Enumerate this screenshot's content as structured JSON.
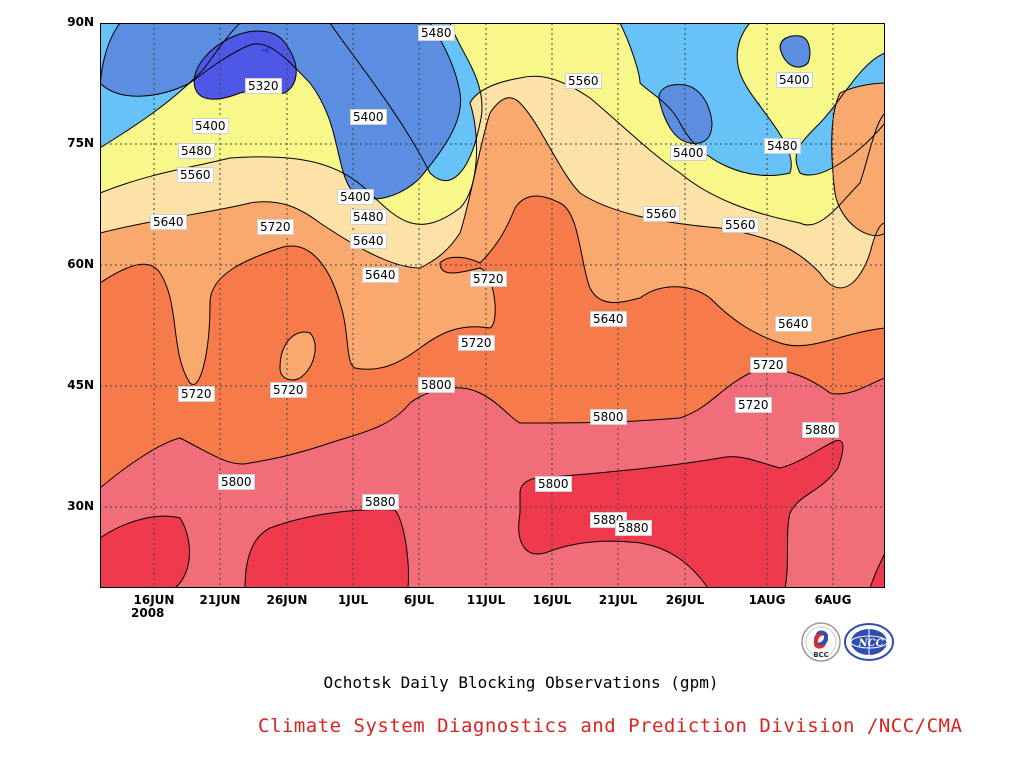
{
  "chart_data": {
    "type": "contour",
    "title": "Ochotsk Daily Blocking Observations (gpm)",
    "xlabel": "",
    "ylabel": "",
    "x_ticks": [
      "16JUN",
      "21JUN",
      "26JUN",
      "1JUL",
      "6JUL",
      "11JUL",
      "16JUL",
      "21JUL",
      "26JUL",
      "1AUG",
      "6AUG"
    ],
    "x_year": "2008",
    "y_ticks": [
      "90N",
      "75N",
      "60N",
      "45N",
      "30N"
    ],
    "ylim": [
      20,
      90
    ],
    "levels": [
      5320,
      5400,
      5480,
      5560,
      5640,
      5720,
      5800,
      5880
    ],
    "fill_colors": {
      "5240": "#3b3bd9",
      "5320": "#4f58e6",
      "5400": "#5b8de0",
      "5480": "#66c2f7",
      "5560": "#f7f78a",
      "5640": "#fce2a6",
      "5720": "#f9a96e",
      "5800": "#f77a4a",
      "5880": "#f26d7a",
      "5960": "#ef3a4e"
    },
    "contour_labels": [
      {
        "value": "5480"
      },
      {
        "value": "5560"
      },
      {
        "value": "5640"
      },
      {
        "value": "5320"
      },
      {
        "value": "5400"
      },
      {
        "value": "5400"
      },
      {
        "value": "5480"
      },
      {
        "value": "5560"
      },
      {
        "value": "5400"
      },
      {
        "value": "5400"
      },
      {
        "value": "5480"
      },
      {
        "value": "5400"
      },
      {
        "value": "5480"
      },
      {
        "value": "5560"
      },
      {
        "value": "5640"
      },
      {
        "value": "5720"
      },
      {
        "value": "5560"
      },
      {
        "value": "5640"
      },
      {
        "value": "5640"
      },
      {
        "value": "5720"
      },
      {
        "value": "5720"
      },
      {
        "value": "5720"
      },
      {
        "value": "5640"
      },
      {
        "value": "5720"
      },
      {
        "value": "5720"
      },
      {
        "value": "5800"
      },
      {
        "value": "5800"
      },
      {
        "value": "5720"
      },
      {
        "value": "5800"
      },
      {
        "value": "5880"
      },
      {
        "value": "5800"
      },
      {
        "value": "5880"
      },
      {
        "value": "5880"
      },
      {
        "value": "5880"
      }
    ]
  },
  "footer": {
    "subtitle": "Ochotsk Daily Blocking Observations (gpm)",
    "credit": "Climate System Diagnostics and Prediction Division /NCC/CMA"
  },
  "logos": {
    "bcc_text": "BCC",
    "ncc_text": "NCC"
  }
}
